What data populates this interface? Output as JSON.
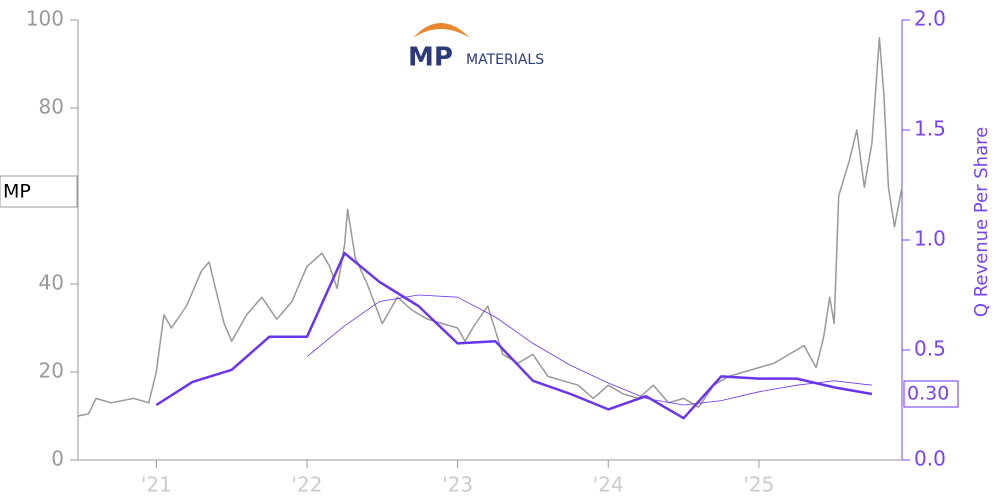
{
  "chart_data": {
    "type": "line",
    "logo": {
      "mark": "MP",
      "text": "MATERIALS"
    },
    "y2_label": "Q Revenue Per Share",
    "xlim": [
      2020.48,
      2025.95
    ],
    "xticks": [
      {
        "value": 2021,
        "label": "'21"
      },
      {
        "value": 2022,
        "label": "'22"
      },
      {
        "value": 2023,
        "label": "'23"
      },
      {
        "value": 2024,
        "label": "'24"
      },
      {
        "value": 2025,
        "label": "'25"
      }
    ],
    "ylim": [
      0,
      100
    ],
    "yticks": [
      0,
      20,
      40,
      80,
      100
    ],
    "y2lim": [
      0,
      2
    ],
    "y2ticks": [
      {
        "value": 0,
        "label": "0.0"
      },
      0.5,
      {
        "value": 1,
        "label": "1.0"
      },
      1.5,
      {
        "value": 2,
        "label": "2.0"
      }
    ],
    "series": [
      {
        "name": "MP",
        "color": "#999999",
        "width": 1.5,
        "x": [
          2020.48,
          2020.55,
          2020.6,
          2020.7,
          2020.85,
          2020.95,
          2021.0,
          2021.05,
          2021.1,
          2021.2,
          2021.3,
          2021.35,
          2021.45,
          2021.5,
          2021.6,
          2021.7,
          2021.8,
          2021.9,
          2022.0,
          2022.1,
          2022.15,
          2022.2,
          2022.25,
          2022.27,
          2022.32,
          2022.4,
          2022.5,
          2022.6,
          2022.7,
          2022.8,
          2022.9,
          2023.0,
          2023.05,
          2023.1,
          2023.2,
          2023.3,
          2023.4,
          2023.5,
          2023.6,
          2023.7,
          2023.8,
          2023.9,
          2024.0,
          2024.1,
          2024.2,
          2024.3,
          2024.4,
          2024.5,
          2024.6,
          2024.7,
          2024.8,
          2024.9,
          2025.0,
          2025.1,
          2025.2,
          2025.3,
          2025.38,
          2025.43,
          2025.47,
          2025.5,
          2025.53,
          2025.6,
          2025.65,
          2025.7,
          2025.75,
          2025.8,
          2025.83,
          2025.86,
          2025.9,
          2025.95
        ],
        "values": [
          10,
          10.5,
          14,
          13,
          14,
          13,
          20,
          33,
          30,
          35,
          43,
          45,
          31,
          27,
          33,
          37,
          32,
          36,
          44,
          47,
          44,
          39,
          49,
          57,
          46,
          40,
          31,
          37,
          34,
          32,
          31,
          30,
          27,
          30,
          35,
          24,
          22,
          24,
          19,
          18,
          17,
          14,
          17,
          15,
          14,
          17,
          13,
          14,
          12,
          17,
          19,
          20,
          21,
          22,
          24,
          26,
          21,
          28,
          37,
          31,
          60,
          68,
          75,
          62,
          72,
          96,
          83,
          62,
          53,
          62
        ]
      },
      {
        "color": "#6a35ee",
        "width": 2.5,
        "x": [
          2021.0,
          2021.24,
          2021.5,
          2021.75,
          2022.0,
          2022.25,
          2022.48,
          2022.74,
          2023.0,
          2023.25,
          2023.5,
          2023.75,
          2024.0,
          2024.25,
          2024.5,
          2024.75,
          2025.0,
          2025.25,
          2025.5,
          2025.75
        ],
        "values": [
          0.25,
          0.355,
          0.41,
          0.56,
          0.56,
          0.94,
          0.81,
          0.7,
          0.53,
          0.54,
          0.36,
          0.3,
          0.23,
          0.29,
          0.19,
          0.38,
          0.37,
          0.37,
          0.33,
          0.3
        ],
        "value_labels": [
          null,
          null,
          null,
          null,
          null,
          null,
          null,
          null,
          null,
          null,
          null,
          null,
          null,
          null,
          null,
          null,
          null,
          null,
          null,
          "0.30"
        ],
        "axis": "y2"
      },
      {
        "color": "#6a35ee",
        "width": 0.8,
        "x": [
          2022.0,
          2022.25,
          2022.48,
          2022.74,
          2023.0,
          2023.25,
          2023.5,
          2023.75,
          2024.0,
          2024.25,
          2024.5,
          2024.75,
          2025.0,
          2025.25,
          2025.5,
          2025.75
        ],
        "values": [
          0.47,
          0.61,
          0.72,
          0.75,
          0.74,
          0.65,
          0.53,
          0.43,
          0.35,
          0.28,
          0.25,
          0.27,
          0.31,
          0.34,
          0.36,
          0.34
        ],
        "axis": "y2"
      }
    ]
  }
}
